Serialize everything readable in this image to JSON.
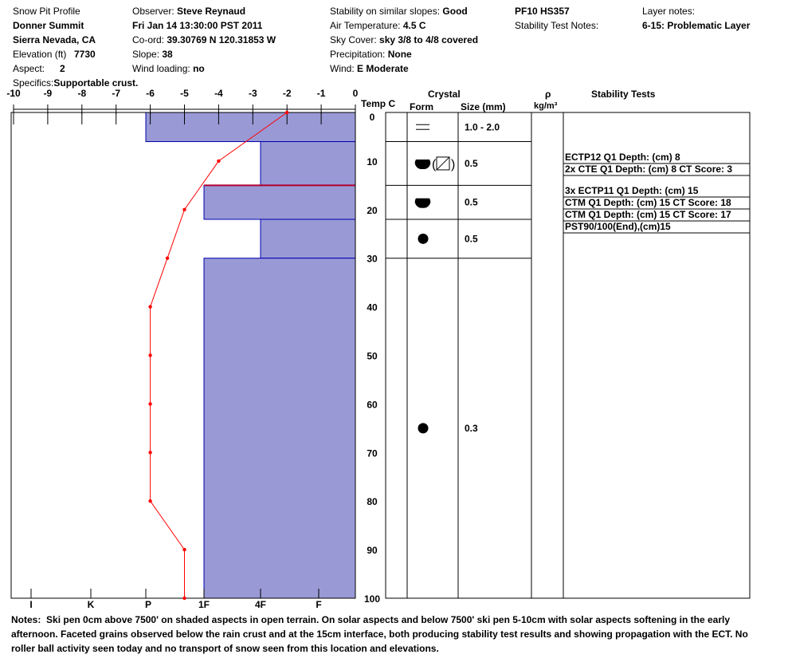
{
  "header": {
    "title": "Snow Pit Profile",
    "location": "Donner Summit",
    "region": "Sierra Nevada, CA",
    "elevation_label": "Elevation (ft)",
    "elevation": "7730",
    "aspect_label": "Aspect:",
    "aspect": "2",
    "specifics_label": "Specifics:",
    "specifics": "Supportable crust.",
    "observer_label": "Observer:",
    "observer": "Steve Reynaud",
    "datetime": "Fri Jan 14 13:30:00 PST 2011",
    "coord_label": "Co-ord:",
    "coord": "39.30769 N 120.31853 W",
    "slope_label": "Slope:",
    "slope": "38",
    "wind_loading_label": "Wind loading:",
    "wind_loading": "no",
    "stability_label": "Stability on similar slopes:",
    "stability": "Good",
    "air_temp_label": "Air Temperature:",
    "air_temp": "4.5 C",
    "sky_label": "Sky Cover:",
    "sky": "sky 3/8 to 4/8 covered",
    "precip_label": "Precipitation:",
    "precip": "None",
    "wind_label": "Wind:",
    "wind": "E Moderate",
    "pit_id": "PF10 HS357",
    "stability_notes_label": "Stability Test Notes:",
    "layer_notes_label": "Layer notes:",
    "layer_note": "6-15: Problematic Layer"
  },
  "columns": {
    "temp_label": "Temp C",
    "crystal": "Crystal",
    "form": "Form",
    "size": "Size (mm)",
    "rho": "ρ",
    "rho_unit": "kg/m³",
    "stability": "Stability Tests"
  },
  "chart_data": {
    "type": "line",
    "temp_axis": {
      "ticks": [
        -10,
        -9,
        -8,
        -7,
        -6,
        -5,
        -4,
        -3,
        -2,
        -1,
        0
      ],
      "range": [
        -10,
        0
      ],
      "label": "Temp C"
    },
    "depth_axis": {
      "ticks": [
        0,
        10,
        20,
        30,
        40,
        50,
        60,
        70,
        80,
        90,
        100
      ],
      "range": [
        0,
        100
      ]
    },
    "hardness_axis": {
      "labels": [
        "I",
        "K",
        "P",
        "1F",
        "4F",
        "F"
      ]
    },
    "temperature_profile": {
      "depth": [
        0,
        10,
        20,
        30,
        40,
        50,
        60,
        70,
        80,
        90,
        100
      ],
      "temp": [
        -2,
        -4,
        -5,
        -5.5,
        -6,
        -6,
        -6,
        -6,
        -6,
        -5,
        -5
      ]
    },
    "layers": [
      {
        "top": 0,
        "bottom": 6,
        "hardness": "P",
        "size": "1.0 - 2.0",
        "form": "surface-hoar-lines"
      },
      {
        "top": 6,
        "bottom": 15,
        "hardness": "4F",
        "size": "0.5",
        "form": "rounding-faceted"
      },
      {
        "top": 15,
        "bottom": 22,
        "hardness": "1F",
        "size": "0.5",
        "form": "rounding-faceted-half"
      },
      {
        "top": 22,
        "bottom": 30,
        "hardness": "4F",
        "size": "0.5",
        "form": "round"
      },
      {
        "top": 30,
        "bottom": 100,
        "hardness": "1F",
        "size": "0.3",
        "form": "round"
      }
    ]
  },
  "stability_tests": [
    "ECTP12 Q1 Depth: (cm) 8",
    "2x CTE Q1 Depth: (cm) 8 CT Score: 3",
    "3x ECTP11 Q1 Depth: (cm) 15",
    "CTM Q1 Depth: (cm) 15 CT Score: 18",
    "CTM Q1 Depth: (cm) 15 CT Score: 17",
    "PST90/100(End),(cm)15"
  ],
  "notes": {
    "label": "Notes:",
    "text": "Ski pen 0cm above 7500' on shaded aspects in open terrain.  On solar aspects and below 7500' ski pen 5-10cm with solar aspects softening in the early afternoon.  Faceted grains observed below the rain crust and at the 15cm interface, both producing stability test results and showing propagation with the ECT.  No roller ball activity seen today and no transport of snow seen from this location and elevations."
  },
  "colors": {
    "bar": "#9999d6",
    "bar_edge": "#0000b0",
    "temp_line": "#ff0000"
  }
}
